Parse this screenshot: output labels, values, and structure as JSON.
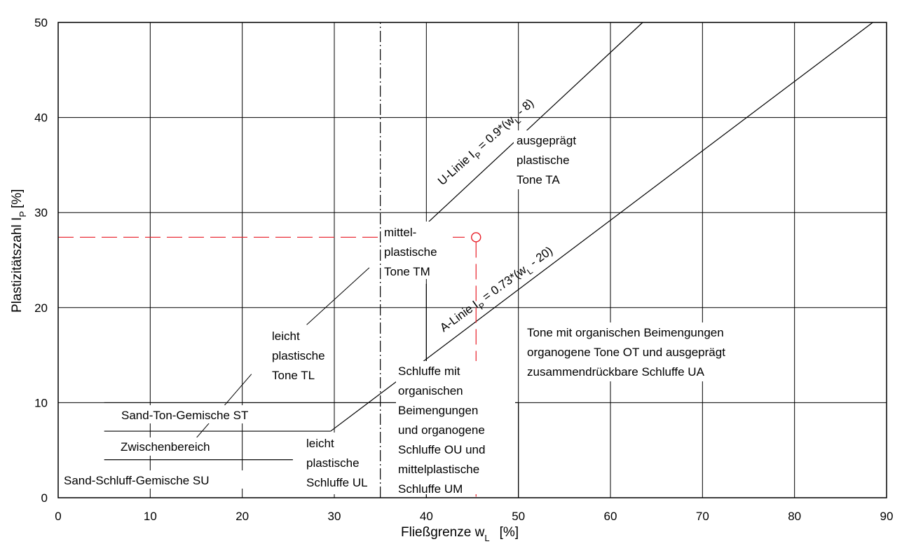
{
  "chart_data": {
    "type": "line",
    "xlabel": "Fließgrenze w",
    "xlabel_sub": "L",
    "xlabel_unit": "[%]",
    "ylabel": "Plastizitätszahl I",
    "ylabel_sub": "P",
    "ylabel_unit": "[%]",
    "xlim": [
      0,
      90
    ],
    "ylim": [
      0,
      50
    ],
    "xticks": [
      0,
      10,
      20,
      30,
      40,
      50,
      60,
      70,
      80,
      90
    ],
    "yticks": [
      0,
      10,
      20,
      30,
      40,
      50
    ],
    "grid": true,
    "lines": {
      "u_line": {
        "x": [
          40,
          63.5
        ],
        "y": [
          28.8,
          50
        ]
      },
      "a_line": {
        "x": [
          29.6,
          88.5
        ],
        "y": [
          7,
          50
        ]
      },
      "st_boundary": {
        "x": [
          5,
          29.6
        ],
        "y": [
          7,
          7
        ]
      },
      "su_boundary": {
        "x": [
          5,
          25.5
        ],
        "y": [
          4,
          4
        ]
      },
      "boundary_35": {
        "x": [
          35,
          35
        ],
        "y": [
          0,
          50
        ]
      },
      "boundary_40": {
        "x": [
          40,
          40
        ],
        "y": [
          0,
          22.5
        ]
      },
      "boundary_50": {
        "x": [
          50,
          50
        ],
        "y": [
          0,
          10
        ]
      }
    },
    "reference_point": {
      "x": 45.4,
      "y": 27.4
    },
    "line_labels": {
      "u_line": {
        "main": "U-Linie I",
        "sub": "P",
        "rest": " = 0.9*(w",
        "sub2": "L",
        "end": " - 8)"
      },
      "a_line": {
        "main": "A-Linie I",
        "sub": "P",
        "rest": " = 0.73*(w",
        "sub2": "L",
        "end": " - 20)"
      }
    },
    "region_labels": {
      "ta": [
        "ausgeprägt",
        "plastische",
        "Tone TA"
      ],
      "tm": [
        "mittel-",
        "plastische",
        "Tone TM"
      ],
      "tl": [
        "leicht",
        "plastische",
        "Tone TL"
      ],
      "ot": [
        "Tone mit organischen Beimengungen",
        "organogene Tone OT und ausgeprägt",
        "zusammendrückbare Schluffe UA"
      ],
      "ou": [
        "Schluffe mit",
        "organischen",
        "Beimengungen",
        "und organogene",
        "Schluffe OU und",
        "mittelplastische",
        "Schluffe UM"
      ],
      "ul": [
        "leicht",
        "plastische",
        "Schluffe UL"
      ],
      "st": "Sand-Ton-Gemische ST",
      "zw": "Zwischenbereich",
      "su": "Sand-Schluff-Gemische SU"
    },
    "colors": {
      "lines": "#000000",
      "grid": "#000000",
      "reference": "#e8202a"
    }
  }
}
